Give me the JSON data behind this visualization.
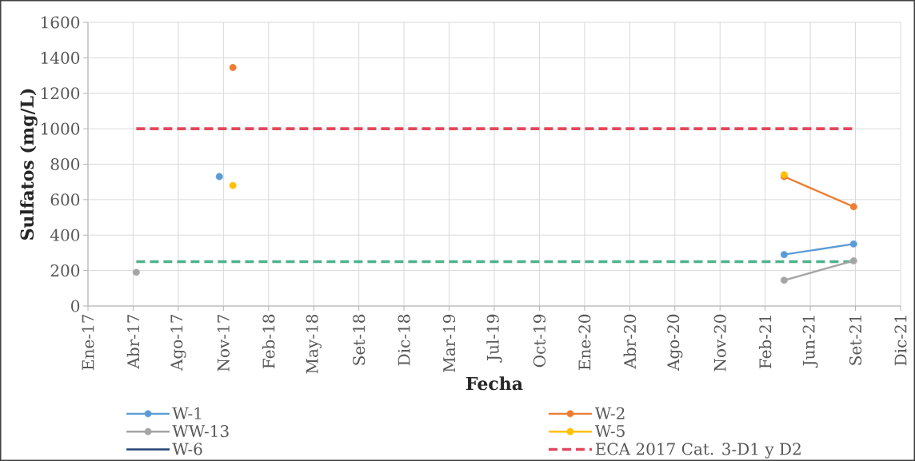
{
  "chart_data": {
    "type": "line",
    "xlabel": "Fecha",
    "ylabel": "Sulfatos (mg/L)",
    "x": [
      "2017-05-01",
      "2017-11-01",
      "2017-12-01",
      "2019-06-01",
      "2021-04-05",
      "2021-09-06"
    ],
    "series": [
      {
        "name": "W-1",
        "color": "#5b9bd5",
        "values": [
          null,
          730,
          null,
          null,
          290,
          350
        ]
      },
      {
        "name": "W-2",
        "color": "#ed7d31",
        "values": [
          null,
          null,
          1345,
          null,
          730,
          560
        ]
      },
      {
        "name": "WW-13",
        "color": "#a5a5a5",
        "values": [
          190,
          null,
          null,
          null,
          145,
          255
        ]
      },
      {
        "name": "W-5",
        "color": "#ffc000",
        "type": "scatter",
        "values": [
          null,
          null,
          680,
          null,
          740,
          null
        ]
      },
      {
        "name": "W-6",
        "color": "#264478",
        "values": [
          null,
          null,
          null,
          null,
          null,
          null
        ],
        "marker": "none"
      },
      {
        "name": "ECA 2017 Cat. 3-D1 y D2",
        "color": "#e0485e",
        "x": [
          "2017-05-01",
          "2021-09-06"
        ],
        "values": [
          1000,
          1000
        ],
        "line_style": "dashed",
        "marker": "none"
      },
      {
        "color": "#4fb38a",
        "x": [
          "2017-05-01",
          "2021-09-06"
        ],
        "values": [
          250,
          250
        ],
        "line_style": "dashed",
        "marker": "none"
      }
    ],
    "xlim": [
      "2017-01-14",
      "2021-12-19"
    ],
    "xticks": [
      {
        "value": "2017-01-14",
        "label": "Ene-17"
      },
      {
        "value": "2017-04-24",
        "label": "Abr-17"
      },
      {
        "value": "2017-08-02",
        "label": "Ago-17"
      },
      {
        "value": "2017-11-10",
        "label": "Nov-17"
      },
      {
        "value": "2018-02-18",
        "label": "Feb-18"
      },
      {
        "value": "2018-05-29",
        "label": "May-18"
      },
      {
        "value": "2018-09-06",
        "label": "Set-18"
      },
      {
        "value": "2018-12-15",
        "label": "Dic-18"
      },
      {
        "value": "2019-03-25",
        "label": "Mar-19"
      },
      {
        "value": "2019-07-03",
        "label": "Jul-19"
      },
      {
        "value": "2019-10-11",
        "label": "Oct-19"
      },
      {
        "value": "2020-01-19",
        "label": "Ene-20"
      },
      {
        "value": "2020-04-28",
        "label": "Abr-20"
      },
      {
        "value": "2020-08-06",
        "label": "Ago-20"
      },
      {
        "value": "2020-11-14",
        "label": "Nov-20"
      },
      {
        "value": "2021-02-22",
        "label": "Feb-21"
      },
      {
        "value": "2021-06-02",
        "label": "Jun-21"
      },
      {
        "value": "2021-09-10",
        "label": "Set-21"
      },
      {
        "value": "2021-12-19",
        "label": "Dic-21"
      }
    ],
    "ylim": [
      0,
      1600
    ],
    "yticks": [
      0,
      200,
      400,
      600,
      800,
      1000,
      1200,
      1400,
      1600
    ],
    "grid": true,
    "legend": "bottom",
    "marker": "circle",
    "line_style": "solid"
  }
}
